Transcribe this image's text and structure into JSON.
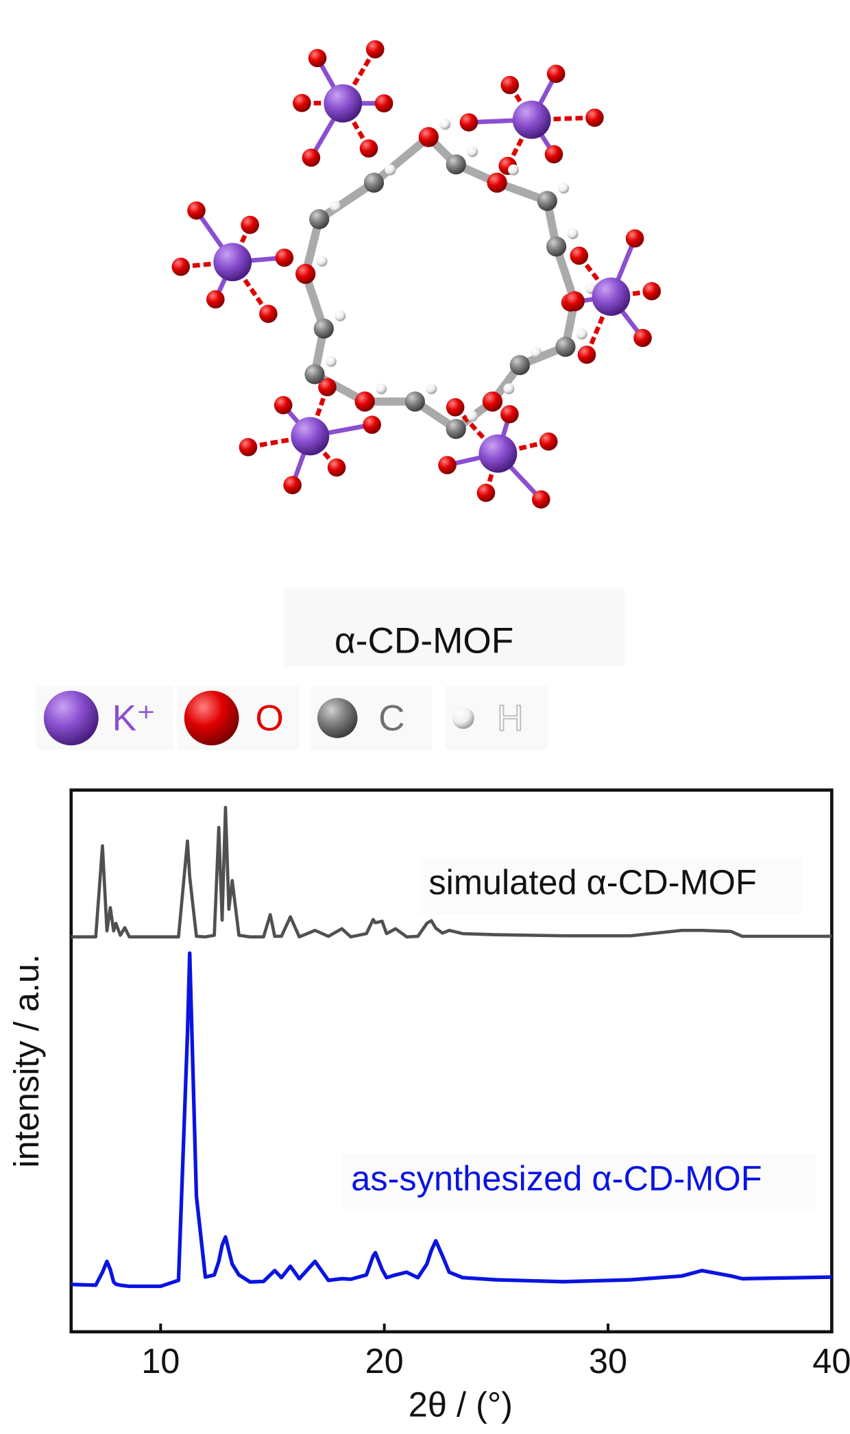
{
  "structure": {
    "label": "α-CD-MOF",
    "legend": [
      {
        "name": "K⁺",
        "color": "#8a4fd0"
      },
      {
        "name": "O",
        "color": "#e00000"
      },
      {
        "name": "C",
        "color": "#707070"
      },
      {
        "name": "H",
        "color": "#bdbdbd"
      }
    ]
  },
  "chart_data": {
    "type": "line",
    "xlabel": "2θ / (°)",
    "ylabel": "intensity / a.u.",
    "xlim": [
      6,
      40
    ],
    "ylim": [
      0,
      100
    ],
    "xticks": [
      10,
      20,
      30,
      40
    ],
    "x": [
      6,
      7.1,
      7.4,
      7.6,
      7.75,
      7.9,
      8.0,
      8.2,
      8.4,
      8.6,
      10.0,
      10.8,
      11.2,
      11.3,
      11.6,
      12.0,
      12.4,
      12.6,
      12.75,
      12.9,
      13.05,
      13.2,
      13.5,
      14.0,
      14.6,
      14.9,
      15.1,
      15.4,
      15.8,
      16.2,
      16.9,
      17.5,
      18.1,
      18.5,
      19.2,
      19.5,
      19.6,
      19.9,
      20.1,
      20.5,
      21.0,
      21.5,
      21.9,
      22.1,
      22.3,
      22.6,
      22.9,
      23.5,
      25,
      28,
      31,
      33.3,
      34.2,
      35.5,
      36,
      40
    ],
    "series": [
      {
        "name": "simulated α-CD-MOF",
        "color": "#505050",
        "values": [
          72.9,
          72.9,
          89.7,
          74,
          78.3,
          74,
          75.4,
          73.2,
          74.6,
          72.9,
          72.9,
          72.9,
          90.6,
          84,
          73,
          72.9,
          73.2,
          93.1,
          76,
          96.8,
          78,
          83.3,
          73.2,
          72.9,
          72.9,
          77,
          73,
          73,
          76.6,
          72.9,
          74.1,
          73,
          74.4,
          72.9,
          73.5,
          76.1,
          75.5,
          75.8,
          73.5,
          74.4,
          72.9,
          73,
          75.4,
          75.9,
          74.5,
          73.6,
          74.1,
          73.5,
          73.3,
          73.1,
          73.1,
          74.1,
          74.1,
          73.9,
          73,
          73
        ]
      },
      {
        "name": "as-synthesized α-CD-MOF",
        "color": "#0a14e0",
        "values": [
          8.75,
          8.6,
          11,
          13,
          11.5,
          9.2,
          8.8,
          8.6,
          8.5,
          8.4,
          8.4,
          9.5,
          55,
          69.9,
          25,
          10.1,
          10.5,
          13,
          16,
          17.5,
          15,
          12.5,
          10.5,
          9.2,
          9.3,
          10.5,
          11.3,
          10,
          12.1,
          9.8,
          13,
          9.5,
          9.8,
          9.7,
          10.5,
          14,
          14.6,
          11.5,
          10,
          10.5,
          11,
          10,
          12.5,
          15,
          16.8,
          14,
          11,
          10,
          9.6,
          9.25,
          9.6,
          10.3,
          11.3,
          10.3,
          9.8,
          10.1
        ]
      }
    ]
  }
}
